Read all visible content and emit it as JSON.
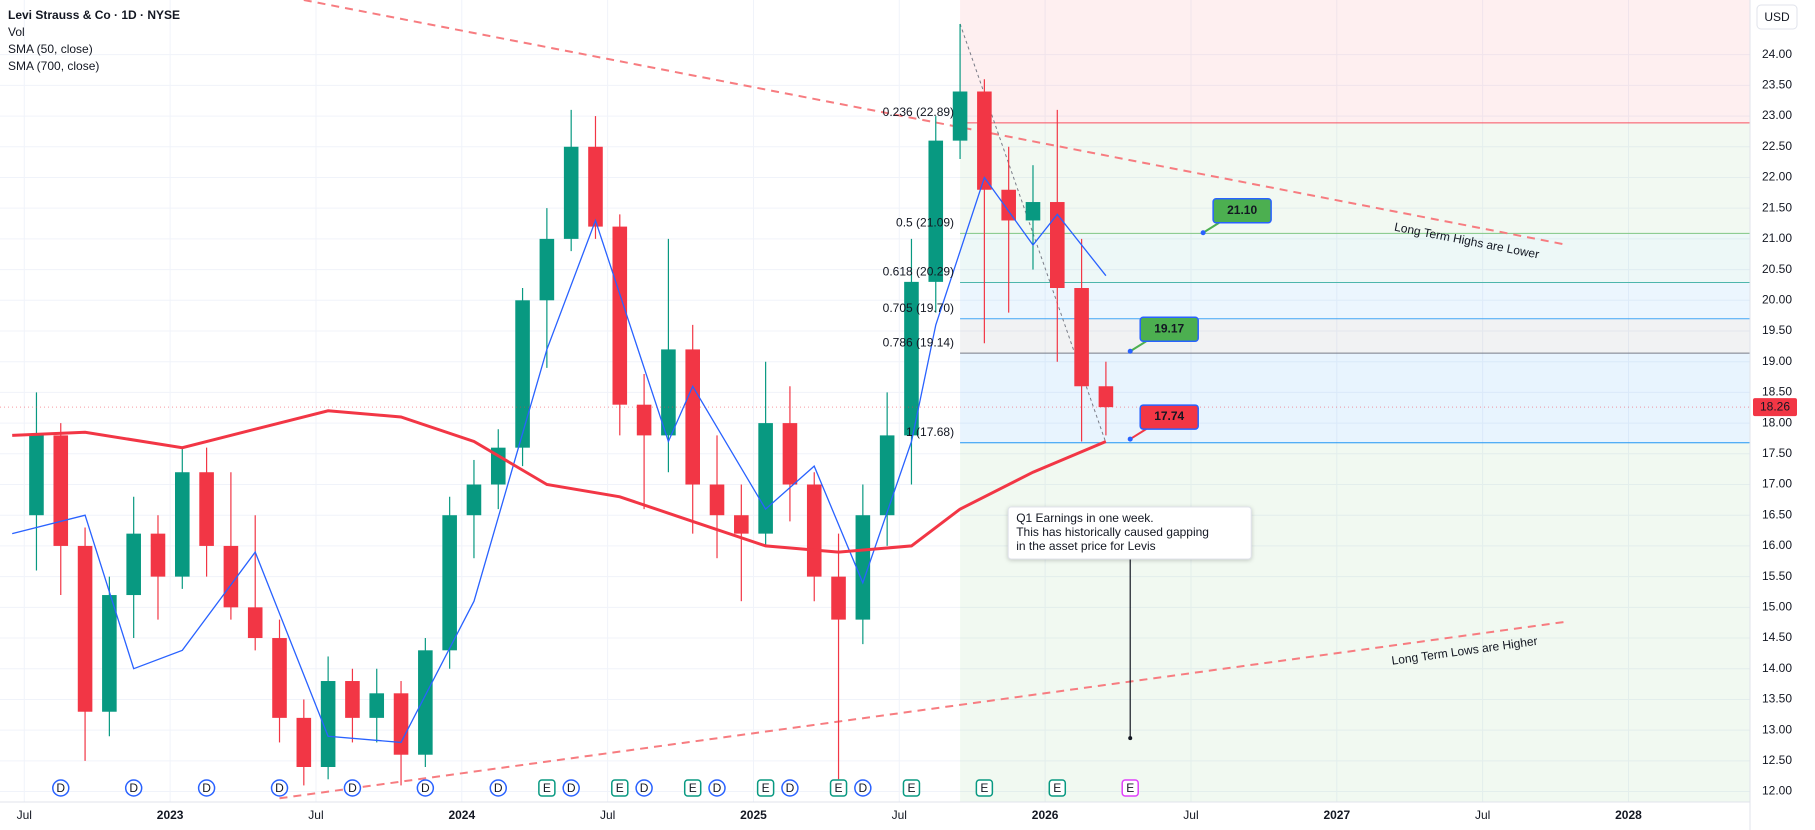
{
  "chart_data": {
    "type": "candlestick",
    "title": "Levi Strauss & Co · 1D · NYSE",
    "indicators": [
      "Vol"
    ],
    "currency": "USD",
    "x": [
      "2022-07",
      "2022-08",
      "2022-09",
      "2022-10",
      "2022-11",
      "2022-12",
      "2023-01",
      "2023-02",
      "2023-03",
      "2023-04",
      "2023-05",
      "2023-06",
      "2023-07",
      "2023-08",
      "2023-09",
      "2023-10",
      "2023-11",
      "2023-12",
      "2024-01",
      "2024-02",
      "2024-03",
      "2024-04",
      "2024-05",
      "2024-06",
      "2024-07",
      "2024-08",
      "2024-09",
      "2024-10",
      "2024-11",
      "2024-12",
      "2025-01",
      "2025-02",
      "2025-03",
      "2025-04",
      "2025-05",
      "2025-06",
      "2025-07",
      "2025-08",
      "2025-09",
      "2025-10",
      "2025-11",
      "2025-12",
      "2026-01",
      "2026-02",
      "2026-03"
    ],
    "open": [
      16.5,
      17.8,
      16.0,
      13.3,
      15.2,
      16.2,
      15.5,
      17.2,
      16.0,
      15.0,
      14.5,
      13.2,
      12.4,
      13.8,
      13.2,
      13.6,
      12.6,
      14.3,
      16.5,
      17.0,
      17.6,
      20.0,
      21.0,
      22.5,
      21.2,
      18.3,
      17.8,
      19.2,
      17.0,
      16.5,
      16.2,
      18.0,
      17.0,
      15.5,
      14.8,
      16.5,
      17.8,
      20.3,
      22.6,
      23.4,
      21.8,
      21.3,
      21.6,
      20.2,
      18.6
    ],
    "high": [
      18.5,
      18.0,
      16.3,
      15.5,
      16.8,
      16.5,
      17.6,
      17.6,
      17.2,
      16.5,
      14.8,
      13.5,
      14.2,
      14.0,
      14.0,
      13.8,
      14.5,
      16.8,
      17.4,
      17.9,
      20.2,
      21.5,
      23.1,
      23.0,
      21.4,
      18.8,
      21.0,
      19.6,
      17.8,
      17.0,
      19.0,
      18.6,
      17.2,
      16.2,
      17.0,
      18.5,
      21.0,
      23.0,
      24.5,
      23.6,
      22.5,
      22.2,
      23.1,
      21.0,
      19.0
    ],
    "low": [
      15.6,
      15.2,
      12.5,
      12.9,
      14.5,
      14.8,
      15.3,
      15.5,
      14.8,
      14.3,
      12.8,
      12.1,
      12.2,
      12.8,
      12.8,
      12.1,
      12.4,
      14.0,
      15.8,
      16.6,
      17.3,
      18.9,
      20.8,
      21.0,
      17.8,
      16.6,
      17.2,
      16.2,
      15.8,
      15.1,
      16.0,
      16.4,
      15.1,
      12.2,
      14.4,
      16.0,
      17.0,
      19.8,
      22.3,
      19.3,
      19.8,
      20.5,
      19.0,
      17.7,
      17.8
    ],
    "close": [
      17.8,
      16.0,
      13.3,
      15.2,
      16.2,
      15.5,
      17.2,
      16.0,
      15.0,
      14.5,
      13.2,
      12.4,
      13.8,
      13.2,
      13.6,
      12.6,
      14.3,
      16.5,
      17.0,
      17.6,
      20.0,
      21.0,
      22.5,
      21.2,
      18.3,
      17.8,
      19.2,
      17.0,
      16.5,
      16.2,
      18.0,
      17.0,
      15.5,
      14.8,
      16.5,
      17.8,
      20.3,
      22.6,
      23.4,
      21.8,
      21.3,
      21.6,
      20.2,
      18.6,
      18.26
    ],
    "up_color": "#089981",
    "down_color": "#f23645",
    "series": [
      {
        "name": "SMA (50, close)",
        "color": "#2962ff",
        "width": 1.3,
        "x": [
          "2022-06",
          "2022-09",
          "2022-11",
          "2023-01",
          "2023-04",
          "2023-07",
          "2023-10",
          "2024-01",
          "2024-04",
          "2024-06",
          "2024-09",
          "2024-10",
          "2025-01",
          "2025-03",
          "2025-05",
          "2025-07",
          "2025-08",
          "2025-10",
          "2025-12",
          "2026-01",
          "2026-03"
        ],
        "values": [
          16.2,
          16.5,
          14.0,
          14.3,
          15.9,
          12.9,
          12.8,
          15.1,
          19.2,
          21.3,
          17.7,
          18.6,
          16.6,
          17.3,
          15.4,
          17.7,
          19.6,
          22.0,
          20.9,
          21.4,
          20.4
        ]
      },
      {
        "name": "SMA (700, close)",
        "color": "#f23645",
        "width": 3,
        "x": [
          "2022-06",
          "2022-09",
          "2023-01",
          "2023-04",
          "2023-07",
          "2023-10",
          "2024-01",
          "2024-04",
          "2024-07",
          "2024-10",
          "2025-01",
          "2025-04",
          "2025-07",
          "2025-09",
          "2025-12",
          "2026-03"
        ],
        "values": [
          17.8,
          17.85,
          17.6,
          17.9,
          18.2,
          18.1,
          17.7,
          17.0,
          16.8,
          16.4,
          16.0,
          15.9,
          16.0,
          16.6,
          17.2,
          17.7
        ]
      }
    ],
    "last_price": {
      "value": 18.26,
      "label": "18.26",
      "color": "#f23645"
    },
    "xlim": [
      "2022-06",
      "2028-06"
    ],
    "xticks": [
      {
        "value": "2022-07",
        "label": "Jul"
      },
      {
        "value": "2023-01",
        "label": "2023"
      },
      {
        "value": "2023-07",
        "label": "Jul"
      },
      {
        "value": "2024-01",
        "label": "2024"
      },
      {
        "value": "2024-07",
        "label": "Jul"
      },
      {
        "value": "2025-01",
        "label": "2025"
      },
      {
        "value": "2025-07",
        "label": "Jul"
      },
      {
        "value": "2026-01",
        "label": "2026"
      },
      {
        "value": "2026-07",
        "label": "Jul"
      },
      {
        "value": "2027-01",
        "label": "2027"
      },
      {
        "value": "2027-07",
        "label": "Jul"
      },
      {
        "value": "2028-01",
        "label": "2028"
      }
    ],
    "ylim": [
      11.83,
      24.89
    ],
    "yticks": [
      {
        "value": 12,
        "label": "12.00"
      },
      {
        "value": 12.5,
        "label": "12.50"
      },
      {
        "value": 13,
        "label": "13.00"
      },
      {
        "value": 13.5,
        "label": "13.50"
      },
      {
        "value": 14,
        "label": "14.00"
      },
      {
        "value": 14.5,
        "label": "14.50"
      },
      {
        "value": 15,
        "label": "15.00"
      },
      {
        "value": 15.5,
        "label": "15.50"
      },
      {
        "value": 16,
        "label": "16.00"
      },
      {
        "value": 16.5,
        "label": "16.50"
      },
      {
        "value": 17,
        "label": "17.00"
      },
      {
        "value": 17.5,
        "label": "17.50"
      },
      {
        "value": 18,
        "label": "18.00"
      },
      {
        "value": 18.5,
        "label": "18.50"
      },
      {
        "value": 19,
        "label": "19.00"
      },
      {
        "value": 19.5,
        "label": "19.50"
      },
      {
        "value": 20,
        "label": "20.00"
      },
      {
        "value": 20.5,
        "label": "20.50"
      },
      {
        "value": 21,
        "label": "21.00"
      },
      {
        "value": 21.5,
        "label": "21.50"
      },
      {
        "value": 22,
        "label": "22.00"
      },
      {
        "value": 22.5,
        "label": "22.50"
      },
      {
        "value": 23,
        "label": "23.00"
      },
      {
        "value": 23.5,
        "label": "23.50"
      },
      {
        "value": 24,
        "label": "24.00"
      }
    ],
    "grid": true,
    "fib_start": "2025-09",
    "fib_top_color": "#f23645",
    "fib_bottom_color": "#4caf50",
    "fib_levels": [
      {
        "label": "0.236 (22.89)",
        "price": 22.89,
        "color": "#f7525f"
      },
      {
        "label": "0.5 (21.09)",
        "price": 21.09,
        "color": "#81c784"
      },
      {
        "label": "0.618 (20.29)",
        "price": 20.29,
        "color": "#4db6ac"
      },
      {
        "label": "0.705 (19.70)",
        "price": 19.7,
        "color": "#42a5f5"
      },
      {
        "label": "0.786 (19.14)",
        "price": 19.14,
        "color": "#787b86"
      },
      {
        "label": "1 (17.68)",
        "price": 17.68,
        "color": "#2196f3"
      }
    ],
    "fib_line": {
      "x": [
        "2025-09",
        "2026-03"
      ],
      "values": [
        24.5,
        17.68
      ]
    },
    "price_callouts": [
      {
        "x": "2026-07",
        "price": 21.1,
        "label": "21.10",
        "color": "#4caf50"
      },
      {
        "x": "2026-04",
        "price": 19.17,
        "label": "19.17",
        "color": "#4caf50"
      },
      {
        "x": "2026-04",
        "price": 17.74,
        "label": "17.74",
        "color": "#f23645"
      }
    ],
    "trend_lines": [
      {
        "label": "Long Term Highs are Lower",
        "color": "#f77c80",
        "x": [
          "2023-06",
          "2027-10"
        ],
        "values": [
          24.89,
          20.9
        ]
      },
      {
        "label": "Long Term Lows are Higher",
        "color": "#f77c80",
        "x": [
          "2023-05",
          "2027-10"
        ],
        "values": [
          11.89,
          14.77
        ]
      }
    ],
    "note": {
      "lines": [
        "Q1 Earnings in one week.",
        "This has historically caused gapping",
        "in the asset price for Levis"
      ],
      "x": "2026-04",
      "price": 12.87
    },
    "events": [
      {
        "x": "2022-08",
        "label": "D",
        "color": "#2962ff"
      },
      {
        "x": "2022-11",
        "label": "D",
        "color": "#2962ff"
      },
      {
        "x": "2023-02",
        "label": "D",
        "color": "#2962ff"
      },
      {
        "x": "2023-05",
        "label": "D",
        "color": "#2962ff"
      },
      {
        "x": "2023-08",
        "label": "D",
        "color": "#2962ff"
      },
      {
        "x": "2023-11",
        "label": "D",
        "color": "#2962ff"
      },
      {
        "x": "2024-02",
        "label": "D",
        "color": "#2962ff"
      },
      {
        "x": "2024-04",
        "label": "E",
        "color": "#089981"
      },
      {
        "x": "2024-05",
        "label": "D",
        "color": "#2962ff"
      },
      {
        "x": "2024-07",
        "label": "E",
        "color": "#089981"
      },
      {
        "x": "2024-08",
        "label": "D",
        "color": "#2962ff"
      },
      {
        "x": "2024-10",
        "label": "E",
        "color": "#089981"
      },
      {
        "x": "2024-11",
        "label": "D",
        "color": "#2962ff"
      },
      {
        "x": "2025-01",
        "label": "E",
        "color": "#089981"
      },
      {
        "x": "2025-02",
        "label": "D",
        "color": "#2962ff"
      },
      {
        "x": "2025-04",
        "label": "E",
        "color": "#089981"
      },
      {
        "x": "2025-05",
        "label": "D",
        "color": "#2962ff"
      },
      {
        "x": "2025-07",
        "label": "E",
        "color": "#089981"
      },
      {
        "x": "2025-10",
        "label": "E",
        "color": "#089981"
      },
      {
        "x": "2026-01",
        "label": "E",
        "color": "#089981"
      },
      {
        "x": "2026-04",
        "label": "E",
        "color": "#e040fb"
      }
    ]
  }
}
